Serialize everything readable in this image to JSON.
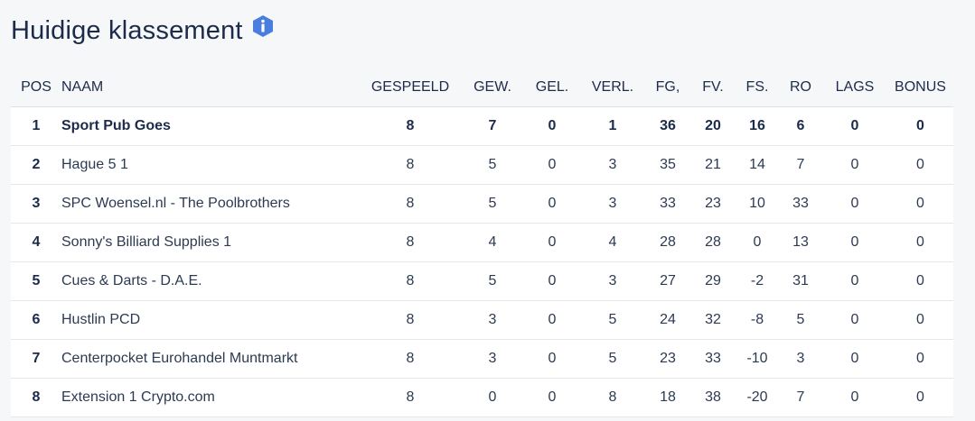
{
  "header": {
    "title": "Huidige klassement",
    "info_icon": "info-hexagon-icon",
    "accent": "#4a7de0"
  },
  "table": {
    "columns": [
      "POS",
      "NAAM",
      "GESPEELD",
      "GEW.",
      "GEL.",
      "VERL.",
      "FG,",
      "FV.",
      "FS.",
      "RO",
      "LAGS",
      "BONUS"
    ],
    "rows": [
      {
        "pos": "1",
        "naam": "Sport Pub Goes",
        "gespeeld": "8",
        "gew": "7",
        "gel": "0",
        "verl": "1",
        "fg": "36",
        "fv": "20",
        "fs": "16",
        "ro": "6",
        "lags": "0",
        "bonus": "0"
      },
      {
        "pos": "2",
        "naam": "Hague 5 1",
        "gespeeld": "8",
        "gew": "5",
        "gel": "0",
        "verl": "3",
        "fg": "35",
        "fv": "21",
        "fs": "14",
        "ro": "7",
        "lags": "0",
        "bonus": "0"
      },
      {
        "pos": "3",
        "naam": "SPC Woensel.nl - The Poolbrothers",
        "gespeeld": "8",
        "gew": "5",
        "gel": "0",
        "verl": "3",
        "fg": "33",
        "fv": "23",
        "fs": "10",
        "ro": "33",
        "lags": "0",
        "bonus": "0"
      },
      {
        "pos": "4",
        "naam": "Sonny's Billiard Supplies 1",
        "gespeeld": "8",
        "gew": "4",
        "gel": "0",
        "verl": "4",
        "fg": "28",
        "fv": "28",
        "fs": "0",
        "ro": "13",
        "lags": "0",
        "bonus": "0"
      },
      {
        "pos": "5",
        "naam": "Cues & Darts - D.A.E.",
        "gespeeld": "8",
        "gew": "5",
        "gel": "0",
        "verl": "3",
        "fg": "27",
        "fv": "29",
        "fs": "-2",
        "ro": "31",
        "lags": "0",
        "bonus": "0"
      },
      {
        "pos": "6",
        "naam": "Hustlin PCD",
        "gespeeld": "8",
        "gew": "3",
        "gel": "0",
        "verl": "5",
        "fg": "24",
        "fv": "32",
        "fs": "-8",
        "ro": "5",
        "lags": "0",
        "bonus": "0"
      },
      {
        "pos": "7",
        "naam": "Centerpocket Eurohandel Muntmarkt",
        "gespeeld": "8",
        "gew": "3",
        "gel": "0",
        "verl": "5",
        "fg": "23",
        "fv": "33",
        "fs": "-10",
        "ro": "3",
        "lags": "0",
        "bonus": "0"
      },
      {
        "pos": "8",
        "naam": "Extension 1 Crypto.com",
        "gespeeld": "8",
        "gew": "0",
        "gel": "0",
        "verl": "8",
        "fg": "18",
        "fv": "38",
        "fs": "-20",
        "ro": "7",
        "lags": "0",
        "bonus": "0"
      }
    ]
  }
}
